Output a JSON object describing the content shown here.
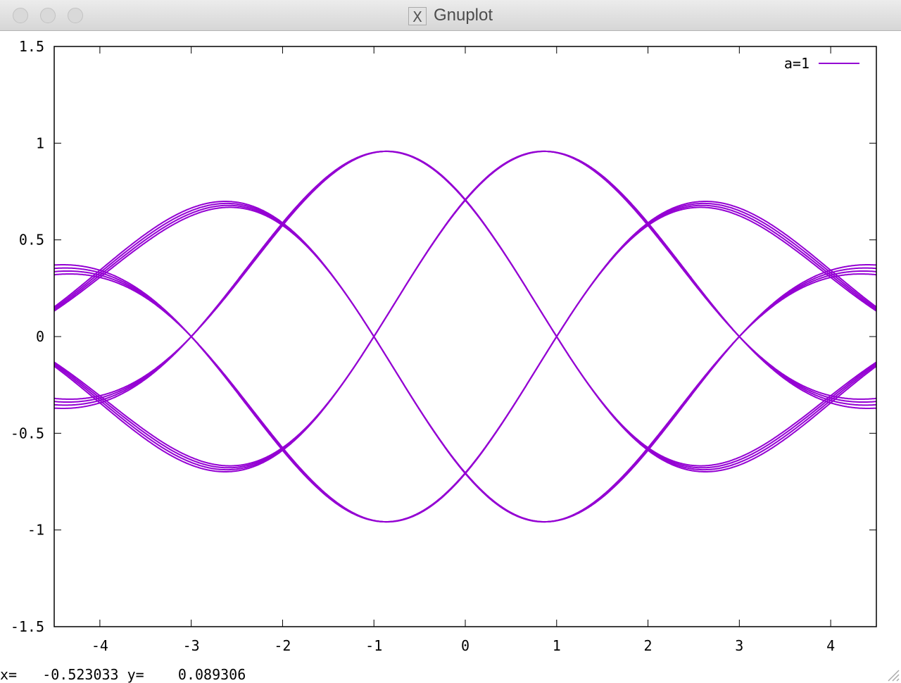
{
  "window": {
    "title": "Gnuplot",
    "buttons": [
      "close",
      "minimize",
      "zoom"
    ]
  },
  "status": {
    "x_label": "x=",
    "x_value": "-0.523033",
    "y_label": "y=",
    "y_value": "0.089306"
  },
  "colors": {
    "series": "#9400d3",
    "frame": "#000000",
    "background": "#ffffff"
  },
  "chart_data": {
    "type": "line",
    "title": "",
    "xlabel": "",
    "ylabel": "",
    "xlim": [
      -4.5,
      4.5
    ],
    "ylim": [
      -1.5,
      1.5
    ],
    "xticks": [
      "-4",
      "-3",
      "-2",
      "-1",
      "0",
      "1",
      "2",
      "3",
      "4"
    ],
    "yticks": [
      "1.5",
      "1",
      "0.5",
      "0",
      "-0.5",
      "-1",
      "-1.5"
    ],
    "grid": false,
    "legend_position": "top-right",
    "legend": [
      "a=1"
    ],
    "series": [
      {
        "name": "a=1",
        "style": "lines",
        "envelope_peaks": [
          [
            -4.25,
            0.02
          ],
          [
            -3.4,
            0.1
          ],
          [
            -2.15,
            0.75
          ],
          [
            -1.45,
            0.95
          ],
          [
            -0.5,
            1.02
          ],
          [
            0.5,
            1.02
          ],
          [
            1.45,
            0.95
          ],
          [
            2.15,
            0.75
          ],
          [
            3.4,
            0.1
          ],
          [
            4.25,
            0.02
          ]
        ],
        "crossings": [
          [
            -4.0,
            0
          ],
          [
            -3.0,
            0
          ],
          [
            -2.0,
            0.71
          ],
          [
            -1.0,
            0.71
          ],
          [
            0.0,
            0.71
          ],
          [
            1.0,
            0.71
          ],
          [
            2.0,
            0.71
          ],
          [
            3.0,
            0
          ],
          [
            4.0,
            0
          ],
          [
            -2.0,
            -0.71
          ],
          [
            -1.0,
            -0.71
          ],
          [
            0.0,
            -0.71
          ],
          [
            1.0,
            -0.71
          ],
          [
            2.0,
            -0.71
          ]
        ]
      }
    ]
  }
}
